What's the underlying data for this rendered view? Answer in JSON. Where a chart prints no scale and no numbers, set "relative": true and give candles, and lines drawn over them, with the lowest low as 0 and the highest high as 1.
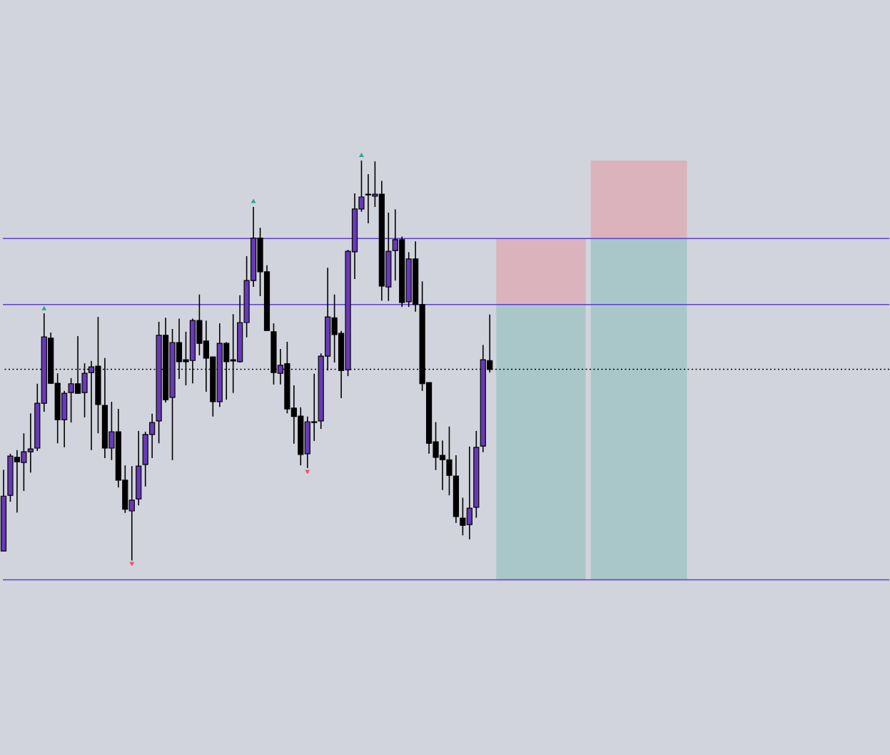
{
  "chart_data": {
    "type": "candlestick",
    "relative": true,
    "categories": [
      null,
      null,
      null,
      null,
      null,
      null,
      null,
      null,
      null,
      null,
      null,
      null,
      null,
      null,
      null,
      null,
      null,
      null,
      null,
      null,
      null,
      null,
      null,
      null,
      null,
      null,
      null,
      null,
      null,
      null,
      null,
      null,
      null,
      null,
      null,
      null,
      null,
      null,
      null,
      null,
      null,
      null,
      null,
      null,
      null,
      null,
      null,
      null,
      null,
      null,
      null,
      null,
      null,
      null,
      null,
      null,
      null,
      null,
      null,
      null,
      null,
      null,
      null,
      null,
      null,
      null,
      null,
      null,
      null,
      null,
      null,
      null,
      null
    ],
    "ohlc": [
      [
        0.024,
        0.227,
        0.024,
        0.161
      ],
      [
        0.163,
        0.267,
        0.147,
        0.261
      ],
      [
        0.258,
        0.276,
        0.12,
        0.247
      ],
      [
        0.245,
        0.318,
        0.174,
        0.272
      ],
      [
        0.272,
        0.368,
        0.22,
        0.279
      ],
      [
        0.281,
        0.442,
        0.274,
        0.393
      ],
      [
        0.393,
        0.618,
        0.372,
        0.559
      ],
      [
        0.556,
        0.57,
        0.442,
        0.443
      ],
      [
        0.443,
        0.468,
        0.293,
        0.352
      ],
      [
        0.352,
        0.424,
        0.283,
        0.418
      ],
      [
        0.42,
        0.456,
        0.345,
        0.442
      ],
      [
        0.442,
        0.561,
        0.417,
        0.418
      ],
      [
        0.42,
        0.493,
        0.358,
        0.468
      ],
      [
        0.47,
        0.499,
        0.276,
        0.484
      ],
      [
        0.486,
        0.609,
        0.318,
        0.39
      ],
      [
        0.388,
        0.506,
        0.256,
        0.281
      ],
      [
        0.281,
        0.397,
        0.251,
        0.322
      ],
      [
        0.322,
        0.379,
        0.183,
        0.201
      ],
      [
        0.201,
        0.238,
        0.119,
        0.128
      ],
      [
        0.124,
        0.236,
        0,
        0.151
      ],
      [
        0.154,
        0.324,
        0.138,
        0.236
      ],
      [
        0.24,
        0.322,
        0.185,
        0.315
      ],
      [
        0.315,
        0.367,
        0.256,
        0.345
      ],
      [
        0.349,
        0.597,
        0.293,
        0.563
      ],
      [
        0.563,
        0.607,
        0.395,
        0.402
      ],
      [
        0.408,
        0.579,
        0.251,
        0.545
      ],
      [
        0.545,
        0.605,
        0.454,
        0.497
      ],
      [
        0.502,
        0.572,
        0.438,
        0.497
      ],
      [
        0.5,
        0.605,
        0.443,
        0.6
      ],
      [
        0.6,
        0.665,
        0.513,
        0.543
      ],
      [
        0.549,
        0.6,
        0.422,
        0.506
      ],
      [
        0.509,
        0.509,
        0.36,
        0.397
      ],
      [
        0.397,
        0.593,
        0.384,
        0.543
      ],
      [
        0.543,
        0.546,
        0.402,
        0.497
      ],
      [
        0.502,
        0.616,
        0.419,
        0.499
      ],
      [
        0.497,
        0.663,
        0.495,
        0.595
      ],
      [
        0.595,
        0.761,
        0.558,
        0.7
      ],
      [
        0.7,
        0.884,
        0.684,
        0.806
      ],
      [
        0.806,
        0.832,
        0.661,
        0.722
      ],
      [
        0.722,
        0.738,
        0.575,
        0.575
      ],
      [
        0.572,
        0.593,
        0.44,
        0.47
      ],
      [
        0.468,
        0.529,
        0.44,
        0.488
      ],
      [
        0.492,
        0.547,
        0.368,
        0.379
      ],
      [
        0.381,
        0.438,
        0.292,
        0.36
      ],
      [
        0.361,
        0.383,
        0.238,
        0.265
      ],
      [
        0.267,
        0.36,
        0.231,
        0.347
      ],
      [
        0.347,
        0.467,
        0.299,
        0.345
      ],
      [
        0.349,
        0.518,
        0.329,
        0.511
      ],
      [
        0.511,
        0.732,
        0.475,
        0.609
      ],
      [
        0.607,
        0.665,
        0.495,
        0.565
      ],
      [
        0.568,
        0.574,
        0.406,
        0.475
      ],
      [
        0.477,
        0.777,
        0.461,
        0.773
      ],
      [
        0.772,
        0.918,
        0.704,
        0.879
      ],
      [
        0.879,
        1,
        0.872,
        0.909
      ],
      [
        0.916,
        0.966,
        0.843,
        0.914
      ],
      [
        0.911,
        0.998,
        0.884,
        0.916
      ],
      [
        0.916,
        0.949,
        0.65,
        0.686
      ],
      [
        0.684,
        0.87,
        0.649,
        0.773
      ],
      [
        0.775,
        0.878,
        0.7,
        0.802
      ],
      [
        0.802,
        0.81,
        0.634,
        0.645
      ],
      [
        0.647,
        0.771,
        0.634,
        0.754
      ],
      [
        0.754,
        0.798,
        0.622,
        0.64
      ],
      [
        0.64,
        0.698,
        0.424,
        0.442
      ],
      [
        0.445,
        0.445,
        0.267,
        0.293
      ],
      [
        0.297,
        0.346,
        0.226,
        0.258
      ],
      [
        0.263,
        0.3,
        0.176,
        0.252
      ],
      [
        0.252,
        0.335,
        0.163,
        0.213
      ],
      [
        0.211,
        0.263,
        0.094,
        0.11
      ],
      [
        0.106,
        0.157,
        0.063,
        0.088
      ],
      [
        0.09,
        0.285,
        0.053,
        0.131
      ],
      [
        0.133,
        0.324,
        0.107,
        0.283
      ],
      [
        0.286,
        0.539,
        0.271,
        0.502
      ],
      [
        0.5,
        0.615,
        0.47,
        0.478
      ]
    ],
    "colors": [
      "#673ab7",
      "#673ab7",
      "#000000",
      "#673ab7",
      "#673ab7",
      "#673ab7",
      "#673ab7",
      "#000000",
      "#000000",
      "#673ab7",
      "#673ab7",
      "#000000",
      "#673ab7",
      "#673ab7",
      "#000000",
      "#000000",
      "#673ab7",
      "#000000",
      "#000000",
      "#673ab7",
      "#673ab7",
      "#673ab7",
      "#673ab7",
      "#673ab7",
      "#000000",
      "#673ab7",
      "#000000",
      "#000000",
      "#673ab7",
      "#000000",
      "#000000",
      "#000000",
      "#673ab7",
      "#000000",
      "#000000",
      "#673ab7",
      "#673ab7",
      "#673ab7",
      "#000000",
      "#000000",
      "#000000",
      "#673ab7",
      "#000000",
      "#000000",
      "#000000",
      "#673ab7",
      "#000000",
      "#673ab7",
      "#673ab7",
      "#000000",
      "#000000",
      "#673ab7",
      "#673ab7",
      "#673ab7",
      "#000000",
      "#673ab7",
      "#000000",
      "#673ab7",
      "#673ab7",
      "#000000",
      "#673ab7",
      "#000000",
      "#000000",
      "#000000",
      "#000000",
      "#000000",
      "#000000",
      "#000000",
      "#000000",
      "#673ab7",
      "#673ab7",
      "#673ab7",
      "#000000"
    ],
    "series": [
      {
        "type": "scatter",
        "color": "#26a69a",
        "marker": "triangle",
        "values": [
          null,
          null,
          null,
          null,
          null,
          null,
          0.631,
          null,
          null,
          null,
          null,
          null,
          null,
          null,
          null,
          null,
          null,
          null,
          null,
          null,
          null,
          null,
          null,
          null,
          null,
          null,
          null,
          null,
          null,
          null,
          null,
          null,
          null,
          null,
          null,
          null,
          null,
          0.899,
          null,
          null,
          null,
          null,
          null,
          null,
          null,
          null,
          null,
          null,
          null,
          null,
          null,
          null,
          null,
          null,
          null,
          null,
          null,
          null,
          null,
          null,
          null,
          null,
          null,
          null,
          null,
          null,
          null,
          null,
          null,
          null,
          null,
          null,
          null
        ]
      },
      {
        "type": "scatter",
        "color": "#f7525f",
        "marker": "triangle",
        "values": [
          null,
          null,
          null,
          null,
          null,
          null,
          null,
          null,
          null,
          null,
          null,
          null,
          null,
          null,
          null,
          null,
          null,
          null,
          null,
          -0.009,
          null,
          null,
          null,
          null,
          null,
          null,
          null,
          null,
          null,
          null,
          null,
          null,
          null,
          null,
          null,
          null,
          null,
          null,
          null,
          null,
          null,
          null,
          null,
          null,
          null,
          0.221,
          null,
          null,
          null,
          null,
          null,
          null,
          null,
          null,
          null,
          null,
          null,
          null,
          null,
          null,
          null,
          null,
          null,
          null,
          null,
          null,
          null,
          null,
          null,
          null,
          null,
          null,
          null
        ]
      }
    ],
    "ref_lines": [
      {
        "axis": "y",
        "value": 0.805,
        "color": "#5d3fd3"
      },
      {
        "axis": "y",
        "value": 0.64,
        "color": "#5d3fd3"
      },
      {
        "axis": "y",
        "value": -0.048,
        "color": "#5d3fd3"
      },
      {
        "axis": "y",
        "value": 0.478,
        "color": "#000000",
        "line_style": "dotted"
      }
    ]
  }
}
